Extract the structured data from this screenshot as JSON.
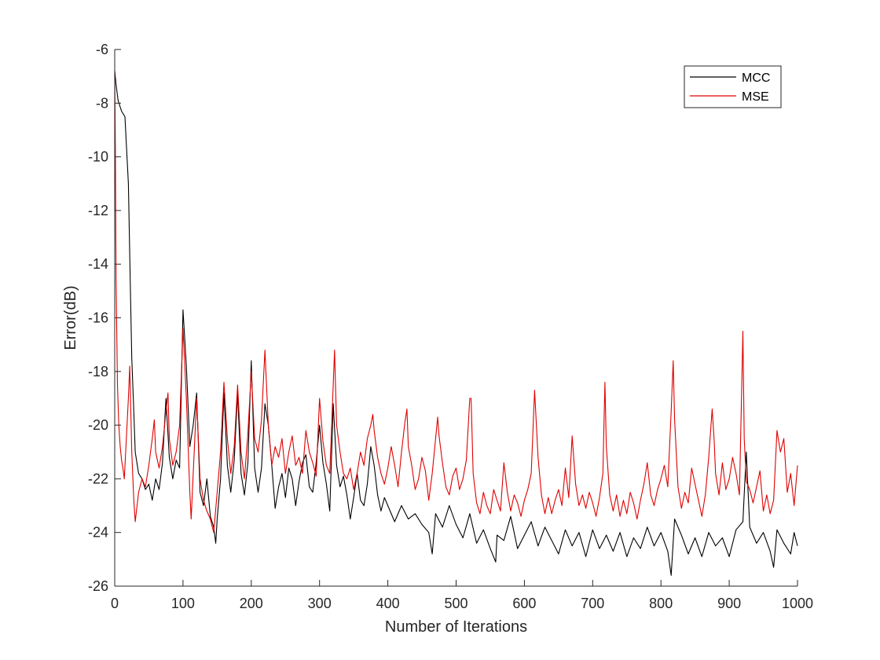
{
  "chart_data": {
    "type": "line",
    "title": "",
    "xlabel": "Number of Iterations",
    "ylabel": "Error(dB)",
    "xlim": [
      0,
      1000
    ],
    "ylim": [
      -26,
      -6
    ],
    "xticks": [
      0,
      100,
      200,
      300,
      400,
      500,
      600,
      700,
      800,
      900,
      1000
    ],
    "yticks": [
      -6,
      -8,
      -10,
      -12,
      -14,
      -16,
      -18,
      -20,
      -22,
      -24,
      -26
    ],
    "grid": false,
    "legend_position": "top-right",
    "series": [
      {
        "name": "MCC",
        "color": "#000000",
        "x": [
          0,
          2,
          5,
          10,
          15,
          20,
          23,
          25,
          28,
          30,
          35,
          40,
          45,
          50,
          55,
          60,
          65,
          70,
          75,
          80,
          85,
          90,
          95,
          100,
          105,
          110,
          115,
          120,
          125,
          130,
          135,
          140,
          145,
          148,
          150,
          155,
          160,
          165,
          170,
          175,
          180,
          185,
          190,
          195,
          200,
          205,
          210,
          215,
          220,
          225,
          230,
          235,
          240,
          245,
          250,
          255,
          260,
          265,
          270,
          275,
          280,
          285,
          290,
          295,
          300,
          305,
          310,
          315,
          320,
          325,
          330,
          335,
          340,
          345,
          350,
          355,
          360,
          365,
          370,
          375,
          380,
          385,
          390,
          395,
          400,
          410,
          420,
          430,
          440,
          450,
          460,
          465,
          470,
          480,
          490,
          500,
          510,
          520,
          530,
          540,
          550,
          558,
          560,
          570,
          580,
          590,
          600,
          610,
          620,
          630,
          640,
          650,
          660,
          670,
          680,
          690,
          700,
          710,
          720,
          730,
          740,
          750,
          760,
          770,
          780,
          790,
          800,
          810,
          815,
          820,
          830,
          840,
          850,
          860,
          870,
          880,
          890,
          900,
          910,
          920,
          925,
          930,
          940,
          950,
          960,
          965,
          970,
          980,
          990,
          995,
          1000
        ],
        "values": [
          -6.8,
          -7.3,
          -7.9,
          -8.3,
          -8.5,
          -11.0,
          -15.0,
          -17.5,
          -19.5,
          -21.0,
          -21.8,
          -22.0,
          -22.4,
          -22.2,
          -22.8,
          -22.0,
          -22.4,
          -21.4,
          -19.0,
          -21.2,
          -22.0,
          -21.3,
          -21.6,
          -15.7,
          -17.8,
          -20.8,
          -20.0,
          -18.8,
          -22.5,
          -23.0,
          -22.0,
          -23.4,
          -23.8,
          -24.4,
          -23.5,
          -22.0,
          -18.8,
          -21.5,
          -22.5,
          -21.3,
          -18.8,
          -21.8,
          -22.6,
          -21.4,
          -17.6,
          -21.6,
          -22.5,
          -21.6,
          -19.2,
          -20.0,
          -21.5,
          -23.1,
          -22.3,
          -21.8,
          -22.7,
          -21.6,
          -22.0,
          -23.0,
          -22.1,
          -21.4,
          -21.1,
          -22.3,
          -22.5,
          -21.4,
          -20.0,
          -21.4,
          -22.2,
          -23.2,
          -19.2,
          -21.5,
          -22.3,
          -21.9,
          -22.6,
          -23.5,
          -22.7,
          -21.8,
          -22.8,
          -23.0,
          -22.2,
          -20.8,
          -21.5,
          -22.6,
          -23.2,
          -22.7,
          -23.0,
          -23.6,
          -23.0,
          -23.5,
          -23.3,
          -23.7,
          -24.0,
          -24.8,
          -23.3,
          -23.8,
          -23.0,
          -23.7,
          -24.2,
          -23.3,
          -24.4,
          -23.9,
          -24.6,
          -25.1,
          -24.1,
          -24.3,
          -23.4,
          -24.6,
          -24.1,
          -23.6,
          -24.5,
          -23.8,
          -24.3,
          -24.8,
          -23.9,
          -24.5,
          -24.0,
          -24.9,
          -23.9,
          -24.6,
          -24.1,
          -24.7,
          -24.0,
          -24.9,
          -24.2,
          -24.6,
          -23.8,
          -24.5,
          -24.0,
          -24.7,
          -25.6,
          -23.5,
          -24.1,
          -24.8,
          -24.2,
          -24.9,
          -24.0,
          -24.5,
          -24.2,
          -24.9,
          -23.9,
          -23.6,
          -21.0,
          -23.8,
          -24.4,
          -24.0,
          -24.7,
          -25.3,
          -23.9,
          -24.4,
          -24.8,
          -24.0,
          -24.5
        ]
      },
      {
        "name": "MSE",
        "color": "#e00000",
        "x": [
          0,
          1,
          2,
          4,
          6,
          8,
          10,
          12,
          14,
          17,
          20,
          22,
          25,
          28,
          30,
          35,
          40,
          45,
          50,
          55,
          58,
          60,
          65,
          70,
          75,
          78,
          80,
          85,
          90,
          95,
          100,
          105,
          110,
          112,
          115,
          120,
          125,
          130,
          135,
          140,
          145,
          150,
          155,
          160,
          165,
          170,
          175,
          180,
          185,
          190,
          195,
          200,
          205,
          210,
          215,
          220,
          225,
          230,
          235,
          240,
          245,
          250,
          255,
          260,
          265,
          270,
          275,
          280,
          285,
          290,
          295,
          300,
          305,
          310,
          315,
          320,
          322,
          325,
          330,
          335,
          340,
          345,
          350,
          355,
          360,
          365,
          370,
          375,
          378,
          380,
          385,
          390,
          395,
          400,
          405,
          410,
          415,
          420,
          425,
          428,
          430,
          435,
          440,
          445,
          450,
          455,
          460,
          465,
          470,
          473,
          475,
          480,
          485,
          490,
          495,
          500,
          505,
          510,
          515,
          520,
          522,
          525,
          530,
          535,
          540,
          545,
          550,
          555,
          560,
          565,
          570,
          575,
          580,
          585,
          590,
          595,
          600,
          605,
          610,
          615,
          620,
          625,
          630,
          635,
          640,
          645,
          650,
          655,
          660,
          665,
          670,
          675,
          680,
          685,
          690,
          695,
          700,
          705,
          710,
          715,
          718,
          720,
          725,
          730,
          735,
          740,
          745,
          750,
          755,
          760,
          765,
          770,
          775,
          780,
          785,
          790,
          795,
          800,
          805,
          810,
          815,
          818,
          820,
          825,
          830,
          835,
          840,
          845,
          850,
          855,
          860,
          865,
          870,
          875,
          878,
          880,
          885,
          890,
          895,
          900,
          905,
          910,
          915,
          920,
          922,
          925,
          930,
          935,
          940,
          945,
          950,
          955,
          960,
          965,
          970,
          975,
          980,
          985,
          990,
          995,
          1000
        ],
        "values": [
          -6.8,
          -10.0,
          -14.5,
          -18.5,
          -20.0,
          -20.8,
          -21.3,
          -21.6,
          -22.0,
          -20.5,
          -19.0,
          -17.8,
          -21.0,
          -22.8,
          -23.6,
          -22.5,
          -22.0,
          -22.3,
          -21.5,
          -20.5,
          -19.8,
          -21.0,
          -21.6,
          -20.8,
          -19.5,
          -18.8,
          -20.5,
          -21.5,
          -21.0,
          -20.0,
          -16.4,
          -19.0,
          -22.5,
          -23.5,
          -21.8,
          -19.0,
          -22.0,
          -22.8,
          -23.2,
          -23.5,
          -24.0,
          -22.5,
          -21.0,
          -18.4,
          -20.5,
          -21.8,
          -20.8,
          -18.5,
          -21.0,
          -22.0,
          -20.3,
          -18.0,
          -20.5,
          -21.0,
          -19.8,
          -17.2,
          -20.0,
          -21.5,
          -20.8,
          -21.2,
          -20.5,
          -21.8,
          -21.0,
          -20.4,
          -21.5,
          -21.2,
          -21.8,
          -20.2,
          -21.0,
          -21.4,
          -21.9,
          -19.0,
          -20.6,
          -21.5,
          -21.8,
          -18.5,
          -17.2,
          -20.0,
          -21.0,
          -21.8,
          -22.0,
          -21.6,
          -22.4,
          -21.8,
          -21.0,
          -21.5,
          -20.5,
          -20.0,
          -19.6,
          -20.2,
          -21.2,
          -21.8,
          -22.2,
          -21.6,
          -20.8,
          -21.5,
          -22.3,
          -21.0,
          -19.9,
          -19.4,
          -20.8,
          -21.5,
          -22.4,
          -22.0,
          -21.2,
          -21.7,
          -22.8,
          -21.8,
          -20.5,
          -19.7,
          -20.4,
          -21.4,
          -22.3,
          -22.6,
          -21.9,
          -21.6,
          -22.4,
          -22.0,
          -21.3,
          -19.0,
          -19.0,
          -21.8,
          -22.9,
          -23.3,
          -22.5,
          -23.0,
          -23.3,
          -22.4,
          -22.8,
          -23.2,
          -21.4,
          -22.5,
          -23.2,
          -22.6,
          -22.9,
          -23.4,
          -22.8,
          -22.4,
          -21.8,
          -18.7,
          -21.2,
          -22.6,
          -23.3,
          -22.7,
          -23.3,
          -22.8,
          -22.4,
          -23.0,
          -21.6,
          -22.7,
          -20.4,
          -22.2,
          -23.0,
          -22.6,
          -23.1,
          -22.5,
          -22.9,
          -23.4,
          -22.7,
          -21.8,
          -18.4,
          -20.8,
          -22.6,
          -23.2,
          -22.6,
          -23.4,
          -22.8,
          -23.3,
          -22.5,
          -22.9,
          -23.5,
          -22.8,
          -22.2,
          -21.4,
          -22.6,
          -23.0,
          -22.4,
          -22.0,
          -21.5,
          -22.3,
          -19.5,
          -17.6,
          -19.8,
          -22.3,
          -23.1,
          -22.5,
          -22.9,
          -21.6,
          -22.2,
          -22.8,
          -23.4,
          -22.6,
          -21.2,
          -19.4,
          -20.6,
          -21.8,
          -22.6,
          -21.4,
          -22.4,
          -22.0,
          -21.2,
          -21.8,
          -22.6,
          -16.5,
          -20.5,
          -22.1,
          -22.4,
          -22.9,
          -22.3,
          -21.7,
          -23.2,
          -22.6,
          -23.3,
          -22.8,
          -20.2,
          -21.0,
          -20.5,
          -22.5,
          -21.8,
          -23.0,
          -21.5
        ]
      }
    ]
  }
}
